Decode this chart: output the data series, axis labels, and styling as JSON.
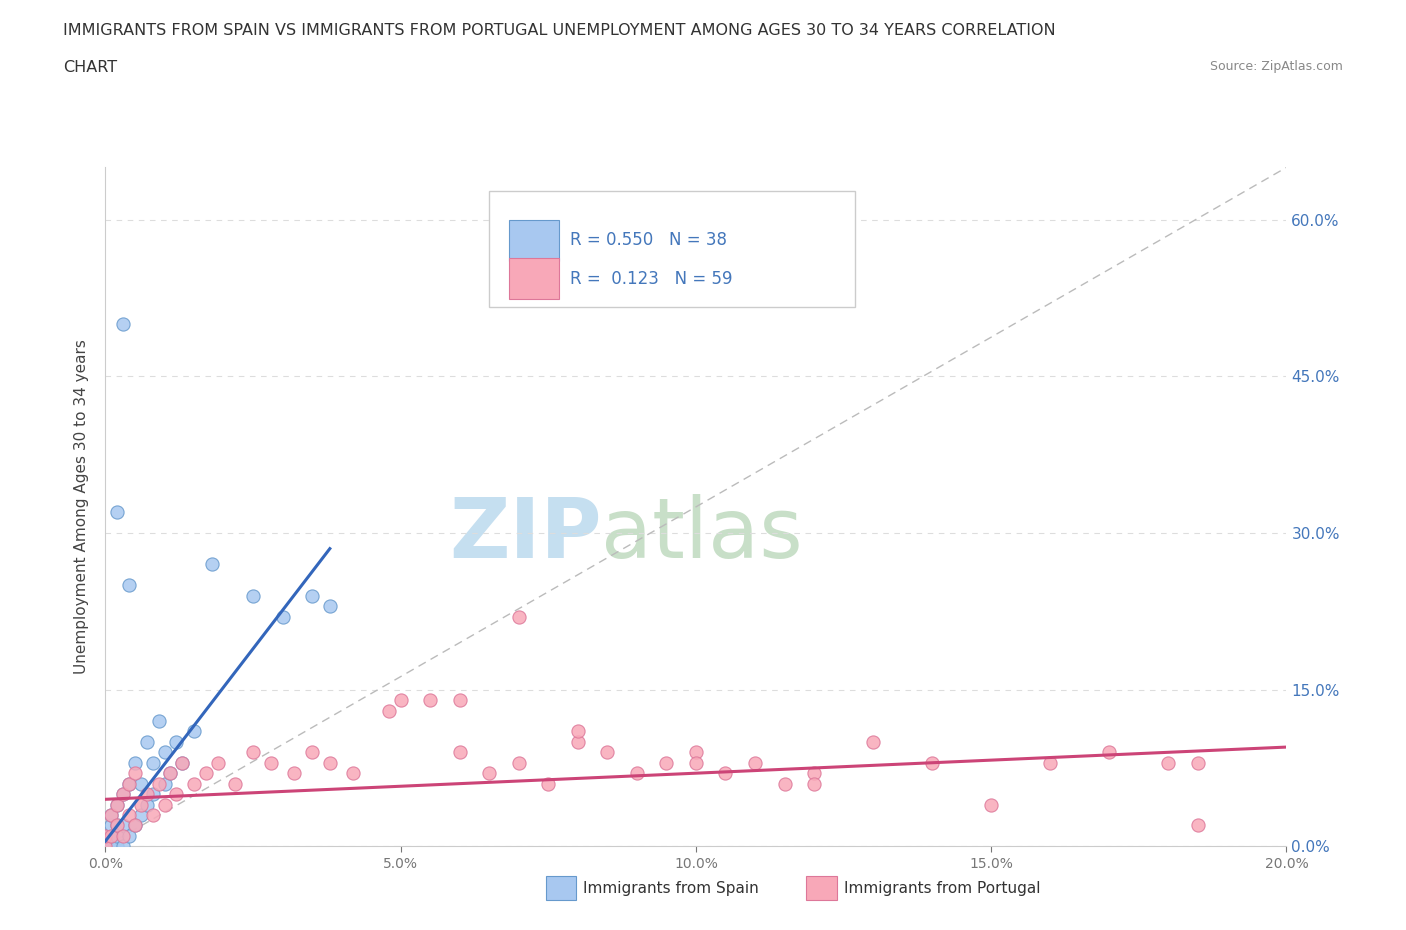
{
  "title_line1": "IMMIGRANTS FROM SPAIN VS IMMIGRANTS FROM PORTUGAL UNEMPLOYMENT AMONG AGES 30 TO 34 YEARS CORRELATION",
  "title_line2": "CHART",
  "source": "Source: ZipAtlas.com",
  "ylabel": "Unemployment Among Ages 30 to 34 years",
  "xmin": 0.0,
  "xmax": 0.2,
  "ymin": 0.0,
  "ymax": 0.65,
  "yticks": [
    0.0,
    0.15,
    0.3,
    0.45,
    0.6
  ],
  "xticks": [
    0.0,
    0.05,
    0.1,
    0.15,
    0.2
  ],
  "spain_color": "#a8c8f0",
  "portugal_color": "#f8a8b8",
  "spain_edge_color": "#6699cc",
  "portugal_edge_color": "#dd7799",
  "spain_line_color": "#3366bb",
  "portugal_line_color": "#cc4477",
  "diag_line_color": "#bbbbbb",
  "legend_r_spain": "0.550",
  "legend_n_spain": "38",
  "legend_r_portugal": "0.123",
  "legend_n_portugal": "59",
  "watermark_zip": "ZIP",
  "watermark_atlas": "atlas",
  "watermark_color_zip": "#c5dff0",
  "watermark_color_atlas": "#c8dfc8",
  "bg_color": "#ffffff",
  "grid_color": "#dddddd",
  "axis_label_color": "#4477bb",
  "spain_scatter_x": [
    0.0,
    0.0,
    0.001,
    0.001,
    0.001,
    0.001,
    0.002,
    0.002,
    0.002,
    0.002,
    0.003,
    0.003,
    0.003,
    0.004,
    0.004,
    0.005,
    0.005,
    0.006,
    0.006,
    0.007,
    0.007,
    0.008,
    0.008,
    0.009,
    0.01,
    0.01,
    0.011,
    0.012,
    0.013,
    0.015,
    0.002,
    0.003,
    0.004,
    0.018,
    0.025,
    0.03,
    0.035,
    0.038
  ],
  "spain_scatter_y": [
    0.0,
    0.01,
    0.0,
    0.01,
    0.02,
    0.03,
    0.0,
    0.01,
    0.02,
    0.04,
    0.0,
    0.02,
    0.05,
    0.01,
    0.06,
    0.02,
    0.08,
    0.03,
    0.06,
    0.04,
    0.1,
    0.05,
    0.08,
    0.12,
    0.06,
    0.09,
    0.07,
    0.1,
    0.08,
    0.11,
    0.32,
    0.5,
    0.25,
    0.27,
    0.24,
    0.22,
    0.24,
    0.23
  ],
  "portugal_scatter_x": [
    0.0,
    0.0,
    0.001,
    0.001,
    0.002,
    0.002,
    0.003,
    0.003,
    0.004,
    0.004,
    0.005,
    0.005,
    0.006,
    0.007,
    0.008,
    0.009,
    0.01,
    0.011,
    0.012,
    0.013,
    0.015,
    0.017,
    0.019,
    0.022,
    0.025,
    0.028,
    0.032,
    0.035,
    0.038,
    0.042,
    0.048,
    0.055,
    0.06,
    0.065,
    0.07,
    0.075,
    0.08,
    0.085,
    0.09,
    0.095,
    0.1,
    0.105,
    0.11,
    0.115,
    0.12,
    0.13,
    0.14,
    0.15,
    0.16,
    0.17,
    0.18,
    0.185,
    0.05,
    0.06,
    0.07,
    0.08,
    0.1,
    0.12,
    0.185
  ],
  "portugal_scatter_y": [
    0.0,
    0.01,
    0.01,
    0.03,
    0.02,
    0.04,
    0.01,
    0.05,
    0.03,
    0.06,
    0.02,
    0.07,
    0.04,
    0.05,
    0.03,
    0.06,
    0.04,
    0.07,
    0.05,
    0.08,
    0.06,
    0.07,
    0.08,
    0.06,
    0.09,
    0.08,
    0.07,
    0.09,
    0.08,
    0.07,
    0.13,
    0.14,
    0.09,
    0.07,
    0.08,
    0.06,
    0.1,
    0.09,
    0.07,
    0.08,
    0.09,
    0.07,
    0.08,
    0.06,
    0.07,
    0.1,
    0.08,
    0.04,
    0.08,
    0.09,
    0.08,
    0.02,
    0.14,
    0.14,
    0.22,
    0.11,
    0.08,
    0.06,
    0.08
  ],
  "spain_line_x": [
    0.0,
    0.038
  ],
  "spain_line_y": [
    0.005,
    0.285
  ],
  "portugal_line_x": [
    0.0,
    0.2
  ],
  "portugal_line_y": [
    0.045,
    0.095
  ]
}
